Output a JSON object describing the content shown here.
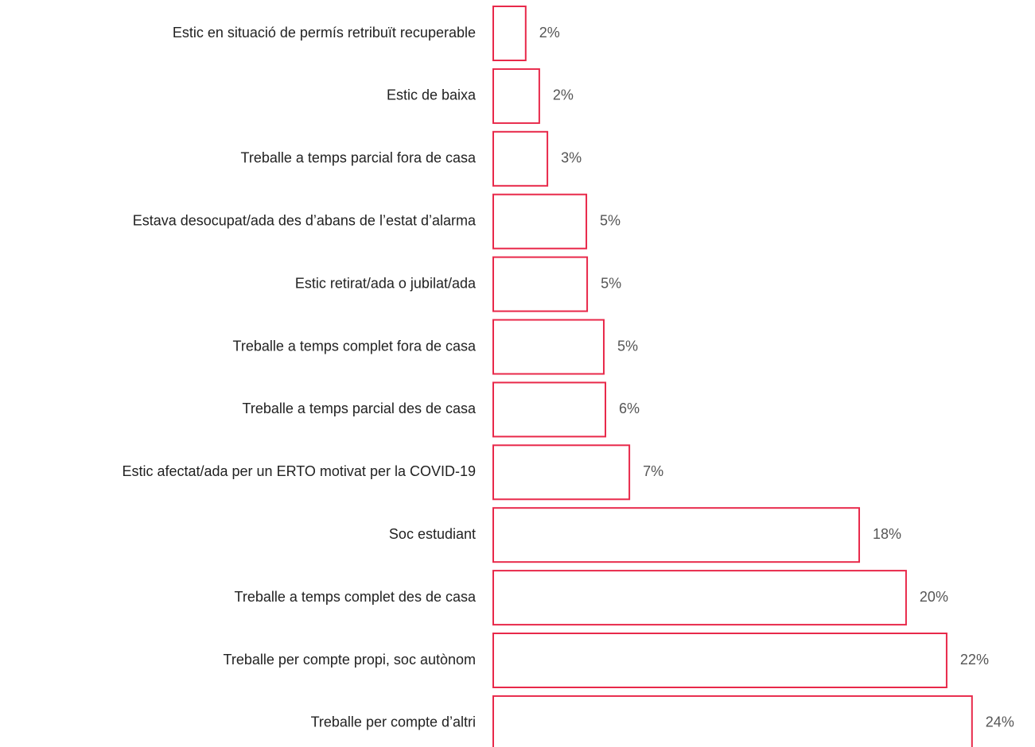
{
  "chart_data": {
    "type": "bar",
    "orientation": "horizontal",
    "categories": [
      "Estic en situació de permís retribuït recuperable",
      "Estic de baixa",
      "Treballe a temps parcial fora de casa",
      "Estava desocupat/ada des d’abans de l’estat d’alarma",
      "Estic retirat/ada o jubilat/ada",
      "Treballe a temps complet fora de casa",
      "Treballe a temps parcial des de casa",
      "Estic afectat/ada per un ERTO motivat per la COVID-19",
      "Soc estudiant",
      "Treballe a temps complet des de casa",
      "Treballe per compte propi, soc autònom",
      "Treballe per compte d’altri"
    ],
    "values": [
      1.6,
      2.27,
      2.67,
      4.59,
      4.63,
      5.45,
      5.53,
      6.71,
      18.04,
      20.35,
      22.35,
      23.6
    ],
    "value_labels": [
      "2%",
      "2%",
      "3%",
      "5%",
      "5%",
      "5%",
      "6%",
      "7%",
      "18%",
      "20%",
      "22%",
      "24%"
    ],
    "color": "#e8294a",
    "xlim": [
      0,
      26
    ]
  }
}
